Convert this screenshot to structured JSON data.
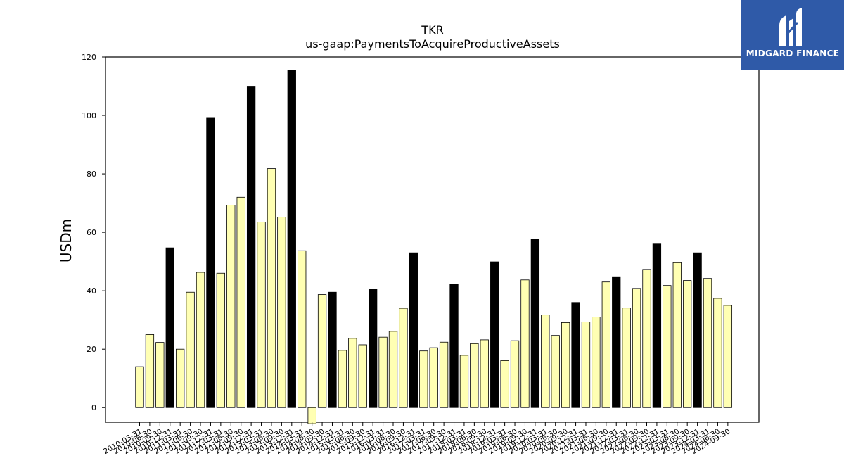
{
  "chart_data": {
    "type": "bar",
    "title": "TKR",
    "subtitle": "us-gaap:PaymentsToAcquireProductiveAssets",
    "ylabel": "USDm",
    "xlabel": "",
    "ylim": [
      -5,
      120
    ],
    "yticks": [
      0,
      20,
      40,
      60,
      80,
      100,
      120
    ],
    "grid": false,
    "categories": [
      "2010-03-31",
      "2010-06-30",
      "2010-09-30",
      "2010-12-31",
      "2011-03-31",
      "2011-06-30",
      "2011-09-30",
      "2011-12-31",
      "2012-03-31",
      "2012-06-30",
      "2012-09-30",
      "2012-12-31",
      "2013-03-31",
      "2013-06-30",
      "2013-09-30",
      "2013-12-31",
      "2014-03-31",
      "2014-06-30",
      "2014-09-30",
      "2014-12-31",
      "2015-03-31",
      "2015-06-30",
      "2015-09-30",
      "2015-12-31",
      "2016-03-31",
      "2016-06-30",
      "2016-09-30",
      "2016-12-31",
      "2017-03-31",
      "2017-06-30",
      "2017-09-30",
      "2017-12-31",
      "2018-03-31",
      "2018-06-30",
      "2018-09-30",
      "2018-12-31",
      "2019-03-31",
      "2019-06-30",
      "2019-09-30",
      "2019-12-31",
      "2020-03-31",
      "2020-06-30",
      "2020-09-30",
      "2020-12-31",
      "2021-03-31",
      "2021-06-30",
      "2021-09-30",
      "2021-12-31",
      "2022-03-31",
      "2022-06-30",
      "2022-09-30",
      "2022-12-31",
      "2023-03-31",
      "2023-06-30",
      "2023-09-30",
      "2023-12-31",
      "2024-03-31",
      "2024-06-30",
      "2024-09-30"
    ],
    "values": [
      14,
      25,
      22.3,
      54.7,
      20,
      39.5,
      46.3,
      99.3,
      46,
      69.3,
      72,
      110,
      63.5,
      81.8,
      65.2,
      115.5,
      53.7,
      -5.5,
      38.7,
      39.5,
      19.6,
      23.7,
      21.5,
      40.6,
      24.1,
      26.1,
      34,
      53,
      19.4,
      20.5,
      22.4,
      42.2,
      17.9,
      21.9,
      23.2,
      49.9,
      16.1,
      22.9,
      43.7,
      57.6,
      31.7,
      24.7,
      29.1,
      36,
      29.3,
      31,
      43,
      44.8,
      34.1,
      40.8,
      47.3,
      56,
      41.8,
      49.6,
      43.5,
      53,
      44.2,
      37.4,
      35
    ],
    "highlight_every": 4,
    "highlight_offset": 3,
    "colors": {
      "normal_bar": "#ffffb3",
      "highlight_bar": "#000000",
      "edge": "#000000"
    }
  },
  "watermark": {
    "text": "MIDGARD FINANCE",
    "background": "#2f5aa8"
  }
}
